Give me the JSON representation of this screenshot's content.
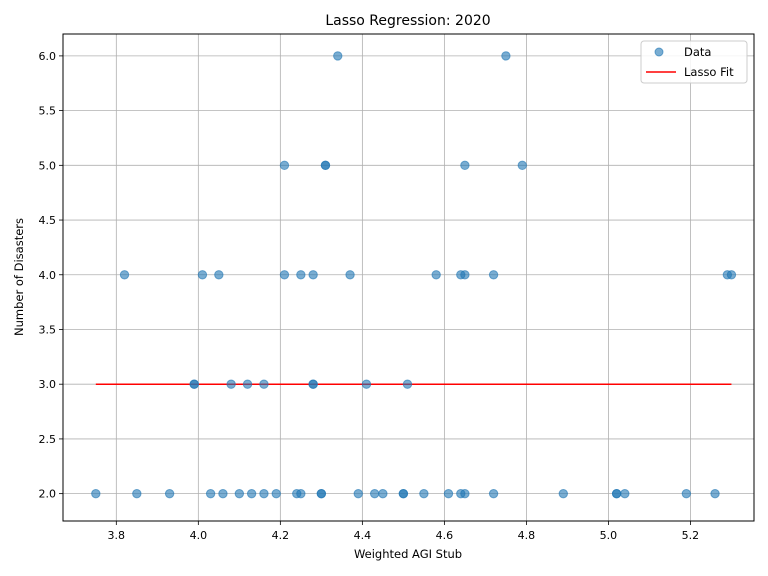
{
  "chart_data": {
    "type": "scatter",
    "title": "Lasso Regression: 2020",
    "xlabel": "Weighted AGI Stub",
    "ylabel": "Number of Disasters",
    "xlim": [
      3.67,
      5.355
    ],
    "ylim": [
      1.75,
      6.2
    ],
    "xticks": [
      "3.8",
      "4.0",
      "4.2",
      "4.4",
      "4.6",
      "4.8",
      "5.0",
      "5.2"
    ],
    "yticks": [
      "2.0",
      "2.5",
      "3.0",
      "3.5",
      "4.0",
      "4.5",
      "5.0",
      "5.5",
      "6.0"
    ],
    "grid": true,
    "legend_position": "top-right",
    "colors": {
      "data": "#1f77b4",
      "fit": "#ff0000",
      "grid": "#b0b0b0"
    },
    "series": [
      {
        "name": "Data",
        "kind": "scatter",
        "points": [
          [
            3.75,
            2
          ],
          [
            3.85,
            2
          ],
          [
            3.93,
            2
          ],
          [
            4.03,
            2
          ],
          [
            4.06,
            2
          ],
          [
            4.1,
            2
          ],
          [
            4.13,
            2
          ],
          [
            4.16,
            2
          ],
          [
            4.19,
            2
          ],
          [
            4.24,
            2
          ],
          [
            4.25,
            2
          ],
          [
            4.3,
            2
          ],
          [
            4.3,
            2
          ],
          [
            4.39,
            2
          ],
          [
            4.43,
            2
          ],
          [
            4.45,
            2
          ],
          [
            4.5,
            2
          ],
          [
            4.5,
            2
          ],
          [
            4.55,
            2
          ],
          [
            4.61,
            2
          ],
          [
            4.64,
            2
          ],
          [
            4.65,
            2
          ],
          [
            4.72,
            2
          ],
          [
            4.89,
            2
          ],
          [
            5.02,
            2
          ],
          [
            5.02,
            2
          ],
          [
            5.04,
            2
          ],
          [
            5.19,
            2
          ],
          [
            5.26,
            2
          ],
          [
            3.99,
            3
          ],
          [
            3.99,
            3
          ],
          [
            4.08,
            3
          ],
          [
            4.12,
            3
          ],
          [
            4.16,
            3
          ],
          [
            4.28,
            3
          ],
          [
            4.28,
            3
          ],
          [
            4.41,
            3
          ],
          [
            4.51,
            3
          ],
          [
            3.82,
            4
          ],
          [
            4.01,
            4
          ],
          [
            4.05,
            4
          ],
          [
            4.21,
            4
          ],
          [
            4.25,
            4
          ],
          [
            4.28,
            4
          ],
          [
            4.37,
            4
          ],
          [
            4.58,
            4
          ],
          [
            4.64,
            4
          ],
          [
            4.65,
            4
          ],
          [
            4.72,
            4
          ],
          [
            5.29,
            4
          ],
          [
            5.3,
            4
          ],
          [
            4.21,
            5
          ],
          [
            4.31,
            5
          ],
          [
            4.31,
            5
          ],
          [
            4.65,
            5
          ],
          [
            4.79,
            5
          ],
          [
            4.34,
            6
          ],
          [
            4.75,
            6
          ]
        ]
      },
      {
        "name": "Lasso Fit",
        "kind": "line",
        "x": [
          3.75,
          5.3
        ],
        "y": [
          3.0,
          3.0
        ]
      }
    ]
  }
}
